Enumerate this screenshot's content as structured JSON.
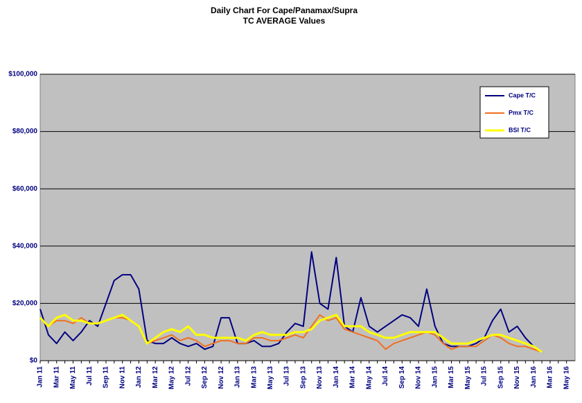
{
  "chart_data": {
    "type": "line",
    "title": "Daily Chart For Cape/Panamax/Supra",
    "subtitle": "TC AVERAGE Values",
    "categories": [
      "Jan 11",
      null,
      "Mar 11",
      null,
      "May 11",
      null,
      "Jul 11",
      null,
      "Sep 11",
      null,
      "Nov 11",
      null,
      "Jan 12",
      null,
      "Mar 12",
      null,
      "May 12",
      null,
      "Jul 12",
      null,
      "Sep 12",
      null,
      "Nov 12",
      null,
      "Jan 13",
      null,
      "Mar 13",
      null,
      "May 13",
      null,
      "Jul 13",
      null,
      "Sep 13",
      null,
      "Nov 13",
      null,
      "Jan 14",
      null,
      "Mar 14",
      null,
      "May 14",
      null,
      "Jul 14",
      null,
      "Sep 14",
      null,
      "Nov 14",
      null,
      "Jan 15",
      null,
      "Mar 15",
      null,
      "May 15",
      null,
      "Jul 15",
      null,
      "Sep 15",
      null,
      "Nov 15",
      null,
      "Jan 16",
      null,
      "Mar 16",
      null,
      "May 16"
    ],
    "series": [
      {
        "name": "Cape T/C",
        "color": "#000080",
        "values": [
          18000,
          9000,
          6000,
          10000,
          7000,
          10000,
          14000,
          12000,
          20000,
          28000,
          30000,
          30000,
          25000,
          7000,
          6000,
          6000,
          8000,
          6000,
          5000,
          6000,
          4000,
          5000,
          15000,
          15000,
          6000,
          6000,
          7000,
          5000,
          5000,
          6000,
          10000,
          13000,
          12000,
          38000,
          20000,
          18000,
          36000,
          12000,
          10000,
          22000,
          12000,
          10000,
          12000,
          14000,
          16000,
          15000,
          12000,
          25000,
          12000,
          6000,
          5000,
          5000,
          5000,
          6000,
          8000,
          14000,
          18000,
          10000,
          12000,
          8000,
          5000,
          3000,
          null,
          null,
          null
        ]
      },
      {
        "name": "Pmx T/C",
        "color": "#f07020",
        "values": [
          15000,
          12000,
          14000,
          14000,
          13000,
          15000,
          13000,
          13000,
          14000,
          15000,
          15000,
          14000,
          12000,
          6000,
          7000,
          8000,
          9000,
          7000,
          8000,
          7000,
          5000,
          6000,
          7000,
          7000,
          6000,
          6000,
          8000,
          8000,
          7000,
          7000,
          8000,
          9000,
          8000,
          12000,
          16000,
          14000,
          15000,
          11000,
          10000,
          9000,
          8000,
          7000,
          4000,
          6000,
          7000,
          8000,
          9000,
          10000,
          9000,
          6000,
          4000,
          5000,
          5000,
          5000,
          7000,
          9000,
          8000,
          6000,
          5000,
          5000,
          4000,
          3000,
          null,
          null,
          null
        ]
      },
      {
        "name": "BSI T/C",
        "color": "#ffff00",
        "values": [
          15000,
          12000,
          15000,
          16000,
          14000,
          14000,
          13000,
          13000,
          14000,
          15000,
          16000,
          14000,
          12000,
          6000,
          8000,
          10000,
          11000,
          10000,
          12000,
          9000,
          9000,
          8000,
          8000,
          8000,
          8000,
          7000,
          9000,
          10000,
          9000,
          9000,
          9000,
          10000,
          10000,
          11000,
          14000,
          15000,
          16000,
          12000,
          12000,
          12000,
          10000,
          9000,
          8000,
          8000,
          9000,
          10000,
          10000,
          10000,
          10000,
          8000,
          6000,
          6000,
          6000,
          7000,
          8000,
          9000,
          9000,
          8000,
          7000,
          6000,
          5000,
          3000,
          null,
          null,
          null
        ]
      }
    ],
    "ylim": [
      0,
      100000
    ],
    "yticks": [
      {
        "value": 0,
        "label": "$0"
      },
      {
        "value": 20000,
        "label": "$20,000"
      },
      {
        "value": 40000,
        "label": "$40,000"
      },
      {
        "value": 60000,
        "label": "$60,000"
      },
      {
        "value": 80000,
        "label": "$80,000"
      },
      {
        "value": 100000,
        "label": "$100,000"
      }
    ],
    "grid": true,
    "legend": "upper right"
  }
}
